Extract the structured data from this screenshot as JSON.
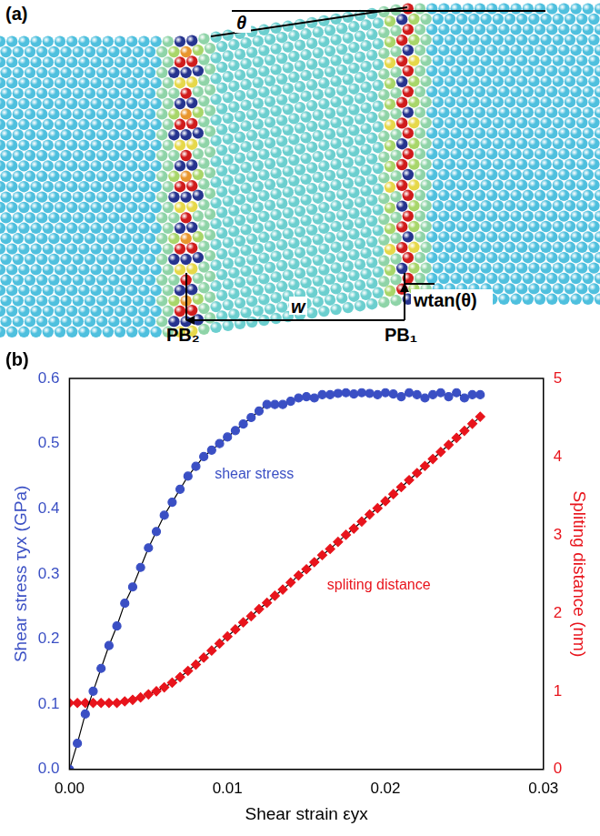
{
  "panel_a": {
    "letter": "(a)",
    "angle_label": "θ",
    "width_label": "w",
    "offset_label": "wtan(θ)",
    "boundaries": [
      "PB₂",
      "PB₁"
    ]
  },
  "chart_data": {
    "type": "line",
    "panel_label": "(b)",
    "x_label": "Shear strain εyx",
    "y_label": "Shear stress τyx (GPa)",
    "y2_label": "Spliting distance (nm)",
    "x": [
      0,
      0.0005,
      0.001,
      0.0015,
      0.002,
      0.0025,
      0.003,
      0.0035,
      0.004,
      0.0045,
      0.005,
      0.0055,
      0.006,
      0.0065,
      0.007,
      0.0075,
      0.008,
      0.0085,
      0.009,
      0.0095,
      0.01,
      0.0105,
      0.011,
      0.0115,
      0.012,
      0.0125,
      0.013,
      0.0135,
      0.014,
      0.0145,
      0.015,
      0.0155,
      0.016,
      0.0165,
      0.017,
      0.0175,
      0.018,
      0.0185,
      0.019,
      0.0195,
      0.02,
      0.0205,
      0.021,
      0.0215,
      0.022,
      0.0225,
      0.023,
      0.0235,
      0.024,
      0.0245,
      0.025,
      0.0255,
      0.026
    ],
    "series": [
      {
        "name": "shear stress",
        "color": "#3a4fc4",
        "marker": "circle",
        "line_style": "solid",
        "axis": "y",
        "values": [
          0,
          0.04,
          0.085,
          0.12,
          0.155,
          0.19,
          0.22,
          0.255,
          0.28,
          0.31,
          0.34,
          0.365,
          0.39,
          0.41,
          0.43,
          0.45,
          0.465,
          0.48,
          0.49,
          0.5,
          0.51,
          0.52,
          0.53,
          0.54,
          0.55,
          0.56,
          0.56,
          0.56,
          0.565,
          0.57,
          0.572,
          0.57,
          0.575,
          0.575,
          0.577,
          0.578,
          0.576,
          0.578,
          0.577,
          0.575,
          0.578,
          0.576,
          0.572,
          0.578,
          0.575,
          0.57,
          0.575,
          0.578,
          0.572,
          0.578,
          0.57,
          0.575,
          0.575
        ]
      },
      {
        "name": "spliting distance",
        "color": "#e8141c",
        "marker": "diamond",
        "line_style": "solid",
        "axis": "y2",
        "values": [
          0.85,
          0.85,
          0.85,
          0.85,
          0.85,
          0.85,
          0.85,
          0.87,
          0.89,
          0.92,
          0.96,
          1.0,
          1.05,
          1.11,
          1.18,
          1.26,
          1.34,
          1.43,
          1.52,
          1.61,
          1.7,
          1.79,
          1.88,
          1.96,
          2.05,
          2.13,
          2.22,
          2.3,
          2.39,
          2.48,
          2.56,
          2.65,
          2.74,
          2.82,
          2.91,
          3.0,
          3.08,
          3.17,
          3.26,
          3.34,
          3.43,
          3.52,
          3.61,
          3.7,
          3.79,
          3.88,
          3.97,
          4.06,
          4.15,
          4.24,
          4.33,
          4.42,
          4.51
        ]
      }
    ],
    "xlim": [
      0,
      0.03
    ],
    "xticks": [
      {
        "value": 0,
        "label": "0.00"
      },
      {
        "value": 0.01,
        "label": "0.01"
      },
      {
        "value": 0.02,
        "label": "0.02"
      },
      {
        "value": 0.03,
        "label": "0.03"
      }
    ],
    "ylim": [
      0,
      0.6
    ],
    "yticks": [
      {
        "value": 0,
        "label": "0.0"
      },
      0.1,
      0.2,
      0.3,
      0.4,
      0.5,
      0.6
    ],
    "y2lim": [
      0,
      5
    ],
    "y2ticks": [
      0,
      1,
      2,
      3,
      4,
      5
    ],
    "grid": false
  }
}
